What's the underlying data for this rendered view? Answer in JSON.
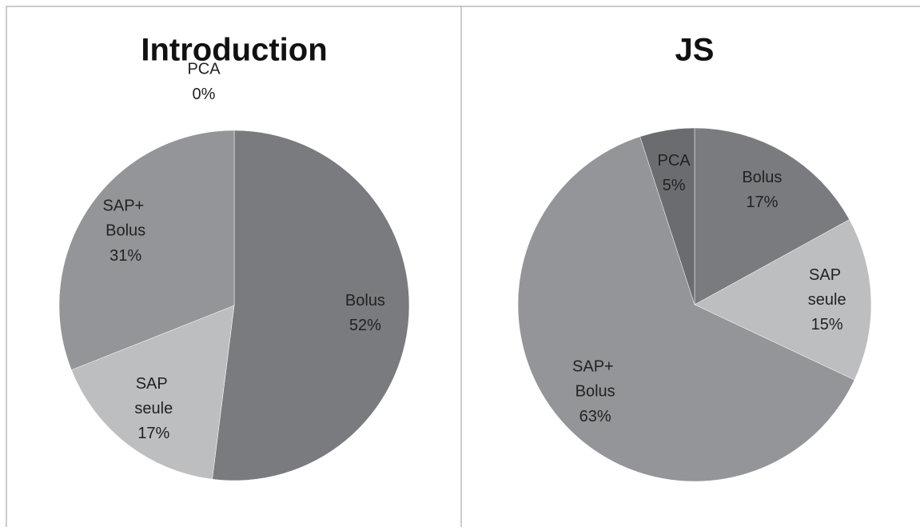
{
  "chart_data": [
    {
      "type": "pie",
      "title": "Introduction",
      "categories": [
        "Bolus",
        "SAP seule",
        "SAP+ Bolus",
        "PCA"
      ],
      "values": [
        52,
        17,
        31,
        0
      ],
      "value_labels": [
        "52%",
        "17%",
        "31%",
        "0%"
      ],
      "colors": [
        "#7a7b7f",
        "#bdbec0",
        "#949598",
        "#6b6c70"
      ]
    },
    {
      "type": "pie",
      "title": "JS",
      "categories": [
        "Bolus",
        "SAP seule",
        "SAP+ Bolus",
        "PCA"
      ],
      "values": [
        17,
        15,
        63,
        5
      ],
      "value_labels": [
        "17%",
        "15%",
        "63%",
        "5%"
      ],
      "colors": [
        "#7a7b7f",
        "#bdbec0",
        "#949598",
        "#6b6c70"
      ]
    }
  ]
}
